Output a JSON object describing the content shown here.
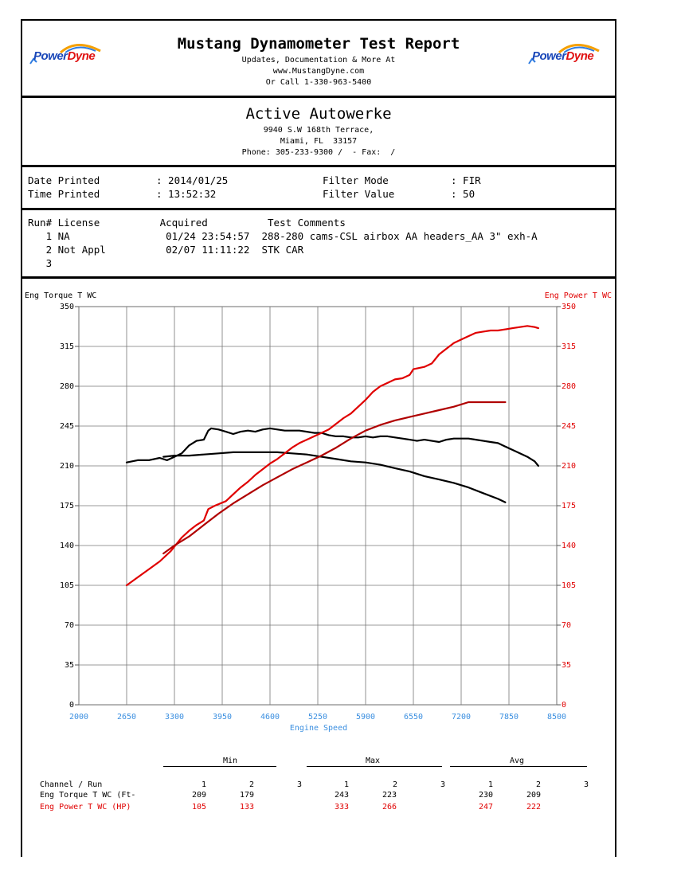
{
  "header": {
    "title": "Mustang Dynamometer Test Report",
    "line1": "Updates, Documentation & More At",
    "line2": "www.MustangDyne.com",
    "line3": "Or Call 1-330-963-5400",
    "logo_text_a": "Power",
    "logo_text_b": "Dyne"
  },
  "shop": {
    "name": "Active Autowerke",
    "address1": "9940 S.W 168th Terrace,",
    "address2": "Miami, FL  33157",
    "phone": "Phone: 305-233-9300 /  - Fax:  /"
  },
  "meta": {
    "date_label": "Date Printed",
    "date_value": ": 2014/01/25",
    "time_label": "Time Printed",
    "time_value": ": 13:52:32",
    "filter_mode_label": "Filter Mode",
    "filter_mode_value": ": FIR",
    "filter_value_label": "Filter Value",
    "filter_value_value": ": 50"
  },
  "runs": {
    "header": "Run# License          Acquired          Test Comments",
    "rows": [
      "   1 NA                01/24 23:54:57  288-280 cams-CSL airbox AA headers_AA 3\" exh-A",
      "   2 Not Appl          02/07 11:11:22  STK CAR",
      "   3"
    ]
  },
  "colors": {
    "torque": "#000000",
    "power": "#e00000",
    "power_run2": "#b00000",
    "xaxis": "#3b8fe0"
  },
  "chart_data": {
    "type": "line",
    "xlabel": "Engine Speed",
    "ylabel_left": "Eng Torque T WC",
    "ylabel_right": "Eng Power T WC",
    "xlim": [
      2000,
      8500
    ],
    "ylim": [
      0,
      350
    ],
    "x_ticks": [
      2000,
      2650,
      3300,
      3950,
      4600,
      5250,
      5900,
      6550,
      7200,
      7850,
      8500
    ],
    "y_ticks": [
      0,
      35,
      70,
      105,
      140,
      175,
      210,
      245,
      280,
      315,
      350
    ],
    "grid": true,
    "series": [
      {
        "name": "Eng Torque T WC Run 1",
        "color": "#000000",
        "x": [
          2650,
          2800,
          2950,
          3100,
          3200,
          3300,
          3400,
          3500,
          3600,
          3700,
          3760,
          3800,
          3900,
          4000,
          4100,
          4200,
          4300,
          4400,
          4500,
          4600,
          4700,
          4800,
          4900,
          5000,
          5100,
          5200,
          5300,
          5400,
          5500,
          5600,
          5700,
          5800,
          5900,
          6000,
          6100,
          6200,
          6300,
          6400,
          6500,
          6600,
          6700,
          6800,
          6900,
          7000,
          7100,
          7200,
          7300,
          7400,
          7500,
          7600,
          7700,
          7800,
          7900,
          8000,
          8100,
          8200,
          8250
        ],
        "y": [
          213,
          215,
          215,
          217,
          215,
          218,
          221,
          228,
          232,
          233,
          241,
          243,
          242,
          240,
          238,
          240,
          241,
          240,
          242,
          243,
          242,
          241,
          241,
          241,
          240,
          239,
          239,
          237,
          236,
          236,
          235,
          235,
          236,
          235,
          236,
          236,
          235,
          234,
          233,
          232,
          233,
          232,
          231,
          233,
          234,
          234,
          234,
          233,
          232,
          231,
          230,
          227,
          224,
          221,
          218,
          214,
          210
        ]
      },
      {
        "name": "Eng Torque T WC Run 2",
        "color": "#000000",
        "x": [
          3150,
          3300,
          3500,
          3700,
          3900,
          4100,
          4300,
          4500,
          4700,
          4900,
          5100,
          5300,
          5500,
          5700,
          5900,
          6100,
          6300,
          6500,
          6700,
          6900,
          7100,
          7300,
          7500,
          7700,
          7800
        ],
        "y": [
          218,
          219,
          219,
          220,
          221,
          222,
          222,
          222,
          222,
          221,
          220,
          218,
          216,
          214,
          213,
          211,
          208,
          205,
          201,
          198,
          195,
          191,
          186,
          181,
          178
        ]
      },
      {
        "name": "Eng Power T WC Run 1",
        "color": "#e00000",
        "x": [
          2650,
          2800,
          2950,
          3100,
          3250,
          3400,
          3500,
          3600,
          3700,
          3760,
          3850,
          4000,
          4100,
          4200,
          4300,
          4400,
          4500,
          4600,
          4700,
          4800,
          4900,
          5000,
          5100,
          5200,
          5300,
          5400,
          5500,
          5600,
          5700,
          5800,
          5900,
          6000,
          6100,
          6200,
          6300,
          6400,
          6500,
          6550,
          6700,
          6800,
          6900,
          7000,
          7100,
          7200,
          7300,
          7400,
          7500,
          7600,
          7700,
          7800,
          7900,
          8000,
          8100,
          8200,
          8250
        ],
        "y": [
          105,
          112,
          119,
          126,
          135,
          147,
          153,
          158,
          162,
          172,
          175,
          179,
          185,
          191,
          196,
          202,
          207,
          212,
          216,
          221,
          226,
          230,
          233,
          236,
          239,
          242,
          247,
          252,
          256,
          262,
          268,
          275,
          280,
          283,
          286,
          287,
          290,
          295,
          297,
          300,
          308,
          313,
          318,
          321,
          324,
          327,
          328,
          329,
          329,
          330,
          331,
          332,
          333,
          332,
          331
        ]
      },
      {
        "name": "Eng Power T WC Run 2",
        "color": "#b00000",
        "x": [
          3150,
          3300,
          3500,
          3700,
          3900,
          4100,
          4300,
          4500,
          4700,
          4900,
          5100,
          5300,
          5500,
          5700,
          5900,
          6100,
          6300,
          6500,
          6700,
          6900,
          7100,
          7300,
          7500,
          7700,
          7800
        ],
        "y": [
          133,
          140,
          148,
          158,
          168,
          177,
          185,
          193,
          200,
          207,
          213,
          219,
          226,
          234,
          241,
          246,
          250,
          253,
          256,
          259,
          262,
          266,
          266,
          266,
          266
        ]
      }
    ]
  },
  "axis_labels": {
    "left_title": "Eng Torque T WC",
    "right_title": "Eng Power T WC",
    "x_title": "Engine Speed",
    "y_tick_labels": [
      "350",
      "315",
      "280",
      "245",
      "210",
      "175",
      "140",
      "105",
      "70",
      "35",
      "0"
    ],
    "x_tick_labels": [
      "2000",
      "2650",
      "3300",
      "3950",
      "4600",
      "5250",
      "5900",
      "6550",
      "7200",
      "7850",
      "8500"
    ]
  },
  "summary": {
    "group_min": "Min",
    "group_max": "Max",
    "group_avg": "Avg",
    "header_label": "Channel / Run",
    "run_cols": [
      "1",
      "2",
      "3"
    ],
    "rows": [
      {
        "label": "Eng Torque T WC (Ft-",
        "min": [
          "209",
          "179"
        ],
        "max": [
          "243",
          "223"
        ],
        "avg": [
          "230",
          "209"
        ]
      },
      {
        "label": "Eng Power T WC (HP)",
        "min": [
          "105",
          "133"
        ],
        "max": [
          "333",
          "266"
        ],
        "avg": [
          "247",
          "222"
        ]
      }
    ]
  }
}
